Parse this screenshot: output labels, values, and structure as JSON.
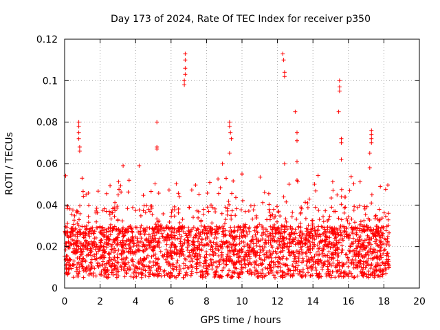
{
  "chart_data": {
    "type": "scatter",
    "title": "Day 173 of 2024, Rate Of TEC Index for receiver p350",
    "xlabel": "GPS time / hours",
    "ylabel": "ROTI / TECUs",
    "xlim": [
      0,
      20
    ],
    "ylim": [
      0,
      0.12
    ],
    "xticks": [
      0,
      2,
      4,
      6,
      8,
      10,
      12,
      14,
      16,
      18,
      20
    ],
    "xtick_labels": [
      "0",
      "2",
      "4",
      "6",
      "8",
      "10",
      "12",
      "14",
      "16",
      "18",
      "20"
    ],
    "yticks": [
      0,
      0.02,
      0.04,
      0.06,
      0.08,
      0.1,
      0.12
    ],
    "ytick_labels": [
      "0",
      "0.02",
      "0.04",
      "0.06",
      "0.08",
      "0.1",
      "0.12"
    ],
    "grid": true,
    "marker": "+",
    "color": "#ff0000",
    "data_extent_hours": [
      0,
      18.3
    ],
    "baseline_range": [
      0.005,
      0.03
    ],
    "series": [
      {
        "name": "ROTI",
        "highlighted_points": [
          {
            "x": 0.8,
            "y": 0.08
          },
          {
            "x": 0.8,
            "y": 0.078
          },
          {
            "x": 0.8,
            "y": 0.075
          },
          {
            "x": 0.8,
            "y": 0.072
          },
          {
            "x": 0.85,
            "y": 0.068
          },
          {
            "x": 0.85,
            "y": 0.066
          },
          {
            "x": 5.2,
            "y": 0.08
          },
          {
            "x": 5.2,
            "y": 0.068
          },
          {
            "x": 5.2,
            "y": 0.067
          },
          {
            "x": 6.8,
            "y": 0.113
          },
          {
            "x": 6.8,
            "y": 0.11
          },
          {
            "x": 6.8,
            "y": 0.106
          },
          {
            "x": 6.8,
            "y": 0.103
          },
          {
            "x": 6.75,
            "y": 0.1
          },
          {
            "x": 6.75,
            "y": 0.098
          },
          {
            "x": 9.3,
            "y": 0.08
          },
          {
            "x": 9.3,
            "y": 0.078
          },
          {
            "x": 9.35,
            "y": 0.075
          },
          {
            "x": 9.4,
            "y": 0.072
          },
          {
            "x": 9.3,
            "y": 0.065
          },
          {
            "x": 12.3,
            "y": 0.113
          },
          {
            "x": 12.35,
            "y": 0.11
          },
          {
            "x": 12.4,
            "y": 0.104
          },
          {
            "x": 12.4,
            "y": 0.102
          },
          {
            "x": 12.4,
            "y": 0.06
          },
          {
            "x": 13.0,
            "y": 0.085
          },
          {
            "x": 13.1,
            "y": 0.075
          },
          {
            "x": 13.1,
            "y": 0.071
          },
          {
            "x": 13.1,
            "y": 0.061
          },
          {
            "x": 13.1,
            "y": 0.052
          },
          {
            "x": 15.5,
            "y": 0.1
          },
          {
            "x": 15.5,
            "y": 0.097
          },
          {
            "x": 15.5,
            "y": 0.095
          },
          {
            "x": 15.45,
            "y": 0.085
          },
          {
            "x": 15.6,
            "y": 0.072
          },
          {
            "x": 15.6,
            "y": 0.07
          },
          {
            "x": 15.6,
            "y": 0.062
          },
          {
            "x": 17.3,
            "y": 0.076
          },
          {
            "x": 17.3,
            "y": 0.074
          },
          {
            "x": 17.3,
            "y": 0.072
          },
          {
            "x": 17.3,
            "y": 0.07
          },
          {
            "x": 17.2,
            "y": 0.065
          },
          {
            "x": 17.2,
            "y": 0.058
          },
          {
            "x": 3.3,
            "y": 0.059
          },
          {
            "x": 4.2,
            "y": 0.059
          },
          {
            "x": 8.9,
            "y": 0.06
          },
          {
            "x": 10.0,
            "y": 0.055
          },
          {
            "x": 12.35,
            "y": 0.044
          }
        ]
      }
    ]
  }
}
